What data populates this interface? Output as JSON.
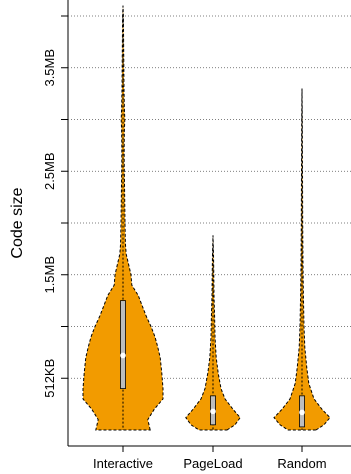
{
  "chart_data": {
    "type": "violin",
    "title": "",
    "xlabel": "",
    "ylabel": "Code size",
    "ylim": [
      0,
      4.0
    ],
    "y_unit": "MB",
    "y_ticks": [
      {
        "value": 0.5,
        "label": "512KB"
      },
      {
        "value": 1.0,
        "label": ""
      },
      {
        "value": 1.5,
        "label": "1.5MB"
      },
      {
        "value": 2.0,
        "label": ""
      },
      {
        "value": 2.5,
        "label": "2.5MB"
      },
      {
        "value": 3.0,
        "label": ""
      },
      {
        "value": 3.5,
        "label": "3.5MB"
      },
      {
        "value": 4.0,
        "label": ""
      }
    ],
    "grid": "horizontal-dotted",
    "categories": [
      "Interactive",
      "PageLoad",
      "Random"
    ],
    "violin_color": "#f29b00",
    "series": [
      {
        "category": "Interactive",
        "min": 0.0,
        "max": 4.1,
        "q1": 0.4,
        "median": 0.72,
        "q3": 1.25,
        "density": [
          [
            0.0,
            0.68
          ],
          [
            0.1,
            0.62
          ],
          [
            0.2,
            0.78
          ],
          [
            0.3,
            1.0
          ],
          [
            0.4,
            1.0
          ],
          [
            0.55,
            0.97
          ],
          [
            0.7,
            0.93
          ],
          [
            0.8,
            0.87
          ],
          [
            0.9,
            0.8
          ],
          [
            1.0,
            0.7
          ],
          [
            1.1,
            0.58
          ],
          [
            1.2,
            0.48
          ],
          [
            1.3,
            0.38
          ],
          [
            1.4,
            0.22
          ],
          [
            1.5,
            0.2
          ],
          [
            1.6,
            0.14
          ],
          [
            1.7,
            0.08
          ],
          [
            1.8,
            0.06
          ],
          [
            2.0,
            0.05
          ],
          [
            2.3,
            0.04
          ],
          [
            2.6,
            0.03
          ],
          [
            2.75,
            0.03
          ],
          [
            2.9,
            0.035
          ],
          [
            3.0,
            0.045
          ],
          [
            3.1,
            0.035
          ],
          [
            3.3,
            0.025
          ],
          [
            3.55,
            0.02
          ],
          [
            3.75,
            0.015
          ],
          [
            4.0,
            0.01
          ],
          [
            4.1,
            0.0
          ]
        ]
      },
      {
        "category": "PageLoad",
        "min": 0.0,
        "max": 1.88,
        "q1": 0.05,
        "median": 0.18,
        "q3": 0.33,
        "density": [
          [
            0.0,
            0.35
          ],
          [
            0.05,
            0.55
          ],
          [
            0.12,
            0.68
          ],
          [
            0.2,
            0.5
          ],
          [
            0.3,
            0.3
          ],
          [
            0.4,
            0.2
          ],
          [
            0.55,
            0.13
          ],
          [
            0.7,
            0.08
          ],
          [
            0.9,
            0.05
          ],
          [
            1.1,
            0.04
          ],
          [
            1.3,
            0.025
          ],
          [
            1.5,
            0.02
          ],
          [
            1.7,
            0.012
          ],
          [
            1.88,
            0.0
          ]
        ]
      },
      {
        "category": "Random",
        "min": 0.0,
        "max": 3.3,
        "q1": 0.03,
        "median": 0.17,
        "q3": 0.33,
        "density": [
          [
            0.0,
            0.35
          ],
          [
            0.05,
            0.55
          ],
          [
            0.12,
            0.7
          ],
          [
            0.2,
            0.5
          ],
          [
            0.3,
            0.3
          ],
          [
            0.45,
            0.17
          ],
          [
            0.6,
            0.12
          ],
          [
            0.8,
            0.07
          ],
          [
            1.0,
            0.05
          ],
          [
            1.3,
            0.035
          ],
          [
            1.6,
            0.025
          ],
          [
            2.0,
            0.018
          ],
          [
            2.5,
            0.012
          ],
          [
            3.0,
            0.008
          ],
          [
            3.3,
            0.0
          ]
        ]
      }
    ]
  }
}
